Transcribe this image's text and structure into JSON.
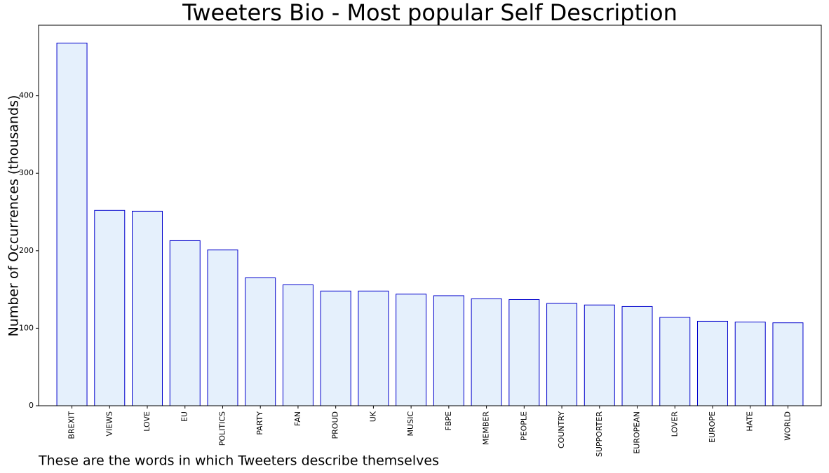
{
  "chart_data": {
    "type": "bar",
    "title": "Tweeters Bio - Most popular Self Description",
    "y_label": "Number of Occurrences (thousands)",
    "caption": "These are the words in which Tweeters describe themselves",
    "categories": [
      "BREXIT",
      "VIEWS",
      "LOVE",
      "EU",
      "POLITICS",
      "PARTY",
      "FAN",
      "PROUD",
      "UK",
      "MUSIC",
      "FBPE",
      "MEMBER",
      "PEOPLE",
      "COUNTRY",
      "SUPPORTER",
      "EUROPEAN",
      "LOVER",
      "EUROPE",
      "HATE",
      "WORLD"
    ],
    "values": [
      468,
      252,
      251,
      213,
      201,
      165,
      156,
      148,
      148,
      144,
      142,
      138,
      137,
      132,
      130,
      128,
      114,
      109,
      108,
      107
    ],
    "color": "#e5f0fc",
    "edge_color": "#0000cc",
    "ylim": [
      0,
      491
    ],
    "yticks": [
      0,
      100,
      200,
      300,
      400
    ],
    "grid": false
  }
}
